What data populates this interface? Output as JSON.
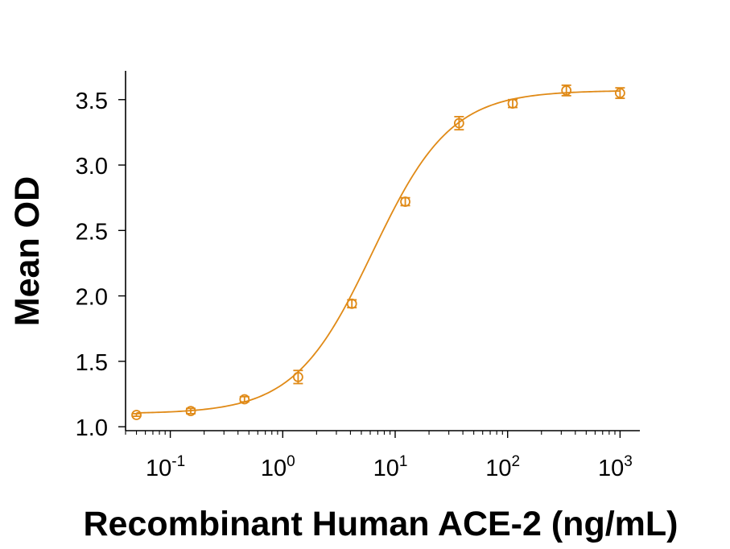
{
  "chart_data": {
    "type": "scatter",
    "title": "",
    "xlabel": "Recombinant Human ACE-2 (ng/mL)",
    "ylabel": "Mean OD",
    "x_scale": "log",
    "xlim": [
      0.04,
      1500
    ],
    "ylim": [
      0.97,
      3.72
    ],
    "x_ticks": [
      {
        "value": 0.1,
        "base": "10",
        "exp": "-1"
      },
      {
        "value": 1,
        "base": "10",
        "exp": "0"
      },
      {
        "value": 10,
        "base": "10",
        "exp": "1"
      },
      {
        "value": 100,
        "base": "10",
        "exp": "2"
      },
      {
        "value": 1000,
        "base": "10",
        "exp": "3"
      }
    ],
    "y_ticks": [
      {
        "value": 1.0,
        "label": "1.0"
      },
      {
        "value": 1.5,
        "label": "1.5"
      },
      {
        "value": 2.0,
        "label": "2.0"
      },
      {
        "value": 2.5,
        "label": "2.5"
      },
      {
        "value": 3.0,
        "label": "3.0"
      },
      {
        "value": 3.5,
        "label": "3.5"
      }
    ],
    "grid": false,
    "color": "#E08A17",
    "series": [
      {
        "points": [
          {
            "x": 0.05,
            "y": 1.09,
            "err": 0.01
          },
          {
            "x": 0.152,
            "y": 1.12,
            "err": 0.02
          },
          {
            "x": 0.457,
            "y": 1.21,
            "err": 0.02
          },
          {
            "x": 1.37,
            "y": 1.38,
            "err": 0.05
          },
          {
            "x": 4.12,
            "y": 1.94,
            "err": 0.03
          },
          {
            "x": 12.3,
            "y": 2.72,
            "err": 0.03
          },
          {
            "x": 37.0,
            "y": 3.32,
            "err": 0.05
          },
          {
            "x": 111,
            "y": 3.47,
            "err": 0.03
          },
          {
            "x": 333,
            "y": 3.57,
            "err": 0.04
          },
          {
            "x": 1000,
            "y": 3.55,
            "err": 0.04
          }
        ],
        "fit": {
          "model": "4PL",
          "bottom": 1.1,
          "top": 3.57,
          "ec50": 6.3,
          "hill": 1.25
        }
      }
    ]
  }
}
